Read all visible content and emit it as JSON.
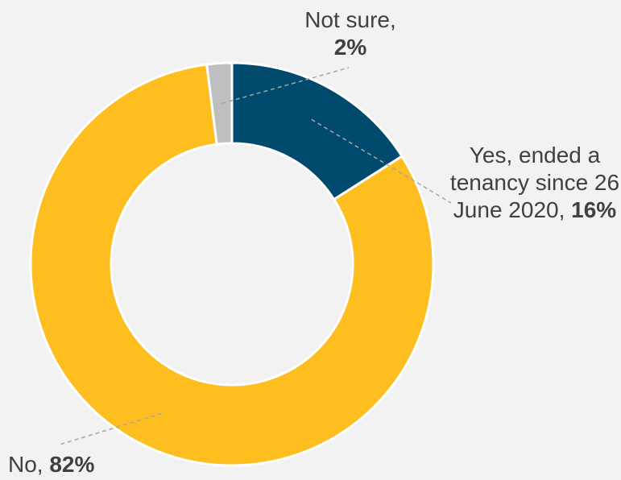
{
  "chart_data": {
    "type": "pie",
    "variant": "donut",
    "slices": [
      {
        "label": "Yes, ended a tenancy since 26 June 2020",
        "label_text": "Yes, ended a tenancy since 26 June 2020,",
        "value": 16,
        "value_text": "16%",
        "color": "#004a6e"
      },
      {
        "label": "No",
        "label_text": "No,",
        "value": 82,
        "value_text": "82%",
        "color": "#ffbe1f"
      },
      {
        "label": "Not sure",
        "label_text": "Not sure,",
        "value": 2,
        "value_text": "2%",
        "color": "#bfbfbf"
      }
    ],
    "start_angle_deg": 0,
    "direction": "clockwise",
    "slice_border_color": "#ffffff",
    "background": "#f2f2f2",
    "leader_line_color": "#a6a6a6",
    "label_color": "#404040"
  }
}
